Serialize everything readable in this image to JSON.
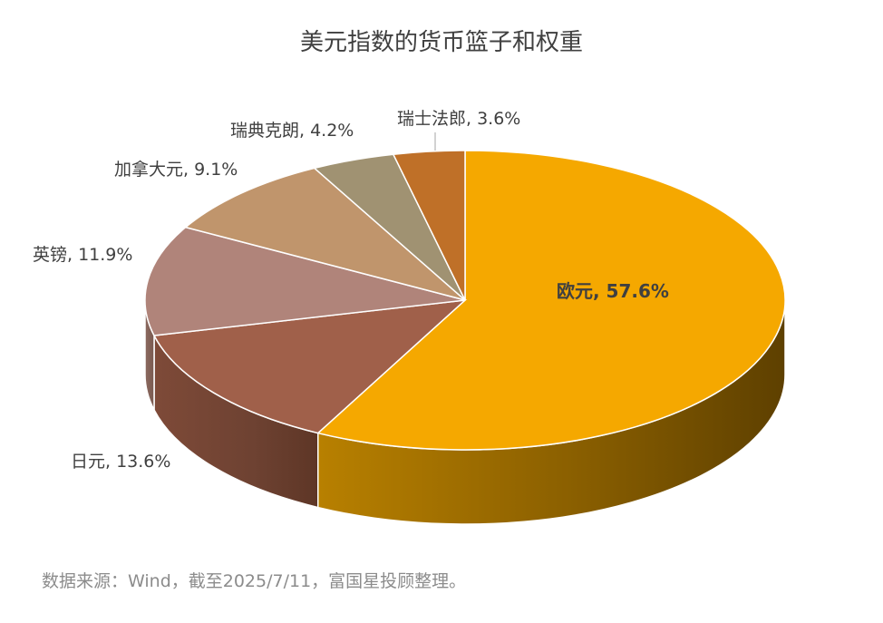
{
  "chart_data": {
    "type": "pie",
    "title": "美元指数的货币篮子和权重",
    "slices": [
      {
        "label": "欧元",
        "value": 57.6,
        "value_label": "57.6%",
        "color": "#F5A800",
        "bold": true
      },
      {
        "label": "日元",
        "value": 13.6,
        "value_label": "13.6%",
        "color": "#A0604A"
      },
      {
        "label": "英镑",
        "value": 11.9,
        "value_label": "11.9%",
        "color": "#B0847A"
      },
      {
        "label": "加拿大元",
        "value": 9.1,
        "value_label": "9.1%",
        "color": "#C0956C"
      },
      {
        "label": "瑞典克朗",
        "value": 4.2,
        "value_label": "4.2%",
        "color": "#A09272"
      },
      {
        "label": "瑞士法郎",
        "value": 3.6,
        "value_label": "3.6%",
        "color": "#BF7028"
      }
    ],
    "style": "3d-pie"
  },
  "source_note": "数据来源：Wind，截至2025/7/11，富国星投顾整理。"
}
